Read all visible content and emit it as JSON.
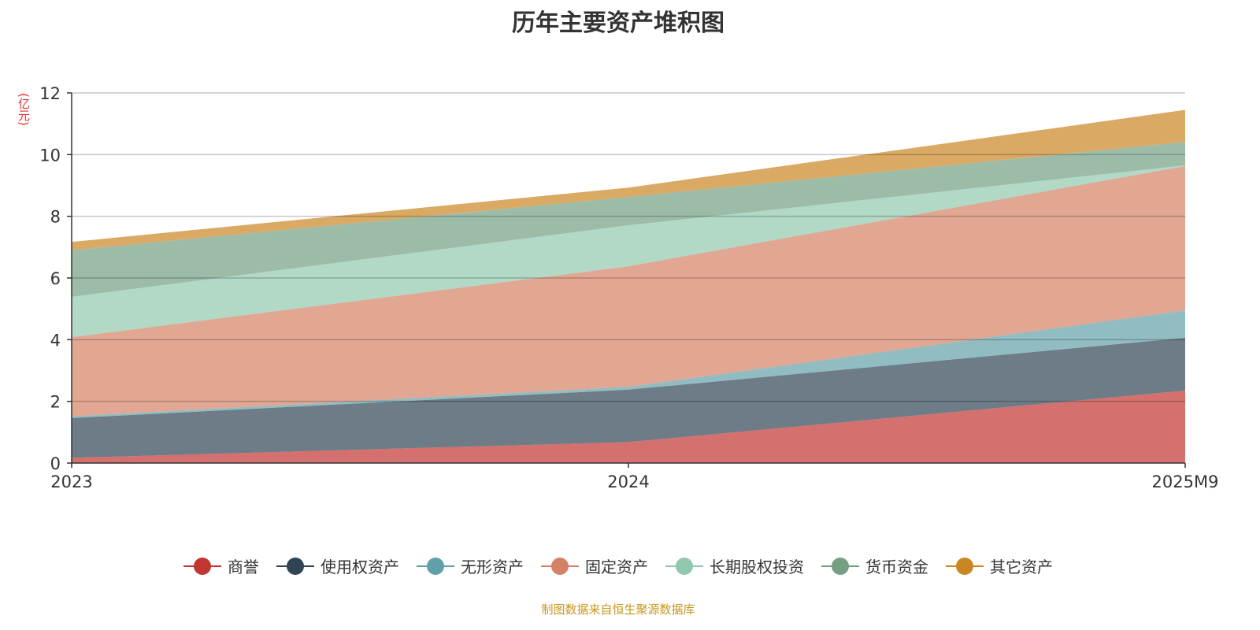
{
  "chart_data": {
    "type": "area",
    "stacked": true,
    "title": "历年主要资产堆积图",
    "ylabel": "(亿元)",
    "xlabel": "",
    "categories": [
      "2023",
      "2024",
      "2025M9"
    ],
    "ylim": [
      0,
      12
    ],
    "yticks": [
      0,
      2,
      4,
      6,
      8,
      10,
      12
    ],
    "grid": true,
    "legend_position": "bottom",
    "series": [
      {
        "name": "商誉",
        "color": "#c23531",
        "values": [
          0.17,
          0.68,
          2.35
        ]
      },
      {
        "name": "使用权资产",
        "color": "#2f4554",
        "values": [
          1.29,
          1.7,
          1.71
        ]
      },
      {
        "name": "无形资产",
        "color": "#61a0a8",
        "values": [
          0.06,
          0.09,
          0.89
        ]
      },
      {
        "name": "固定资产",
        "color": "#d48265",
        "values": [
          2.56,
          3.91,
          4.68
        ]
      },
      {
        "name": "长期股权投资",
        "color": "#91c7ae",
        "values": [
          1.31,
          1.33,
          0.02
        ]
      },
      {
        "name": "货币资金",
        "color": "#749f83",
        "values": [
          1.51,
          0.92,
          0.76
        ]
      },
      {
        "name": "其它资产",
        "color": "#ca8622",
        "values": [
          0.27,
          0.3,
          1.04
        ]
      }
    ]
  },
  "source_note": "制图数据来自恒生聚源数据库"
}
